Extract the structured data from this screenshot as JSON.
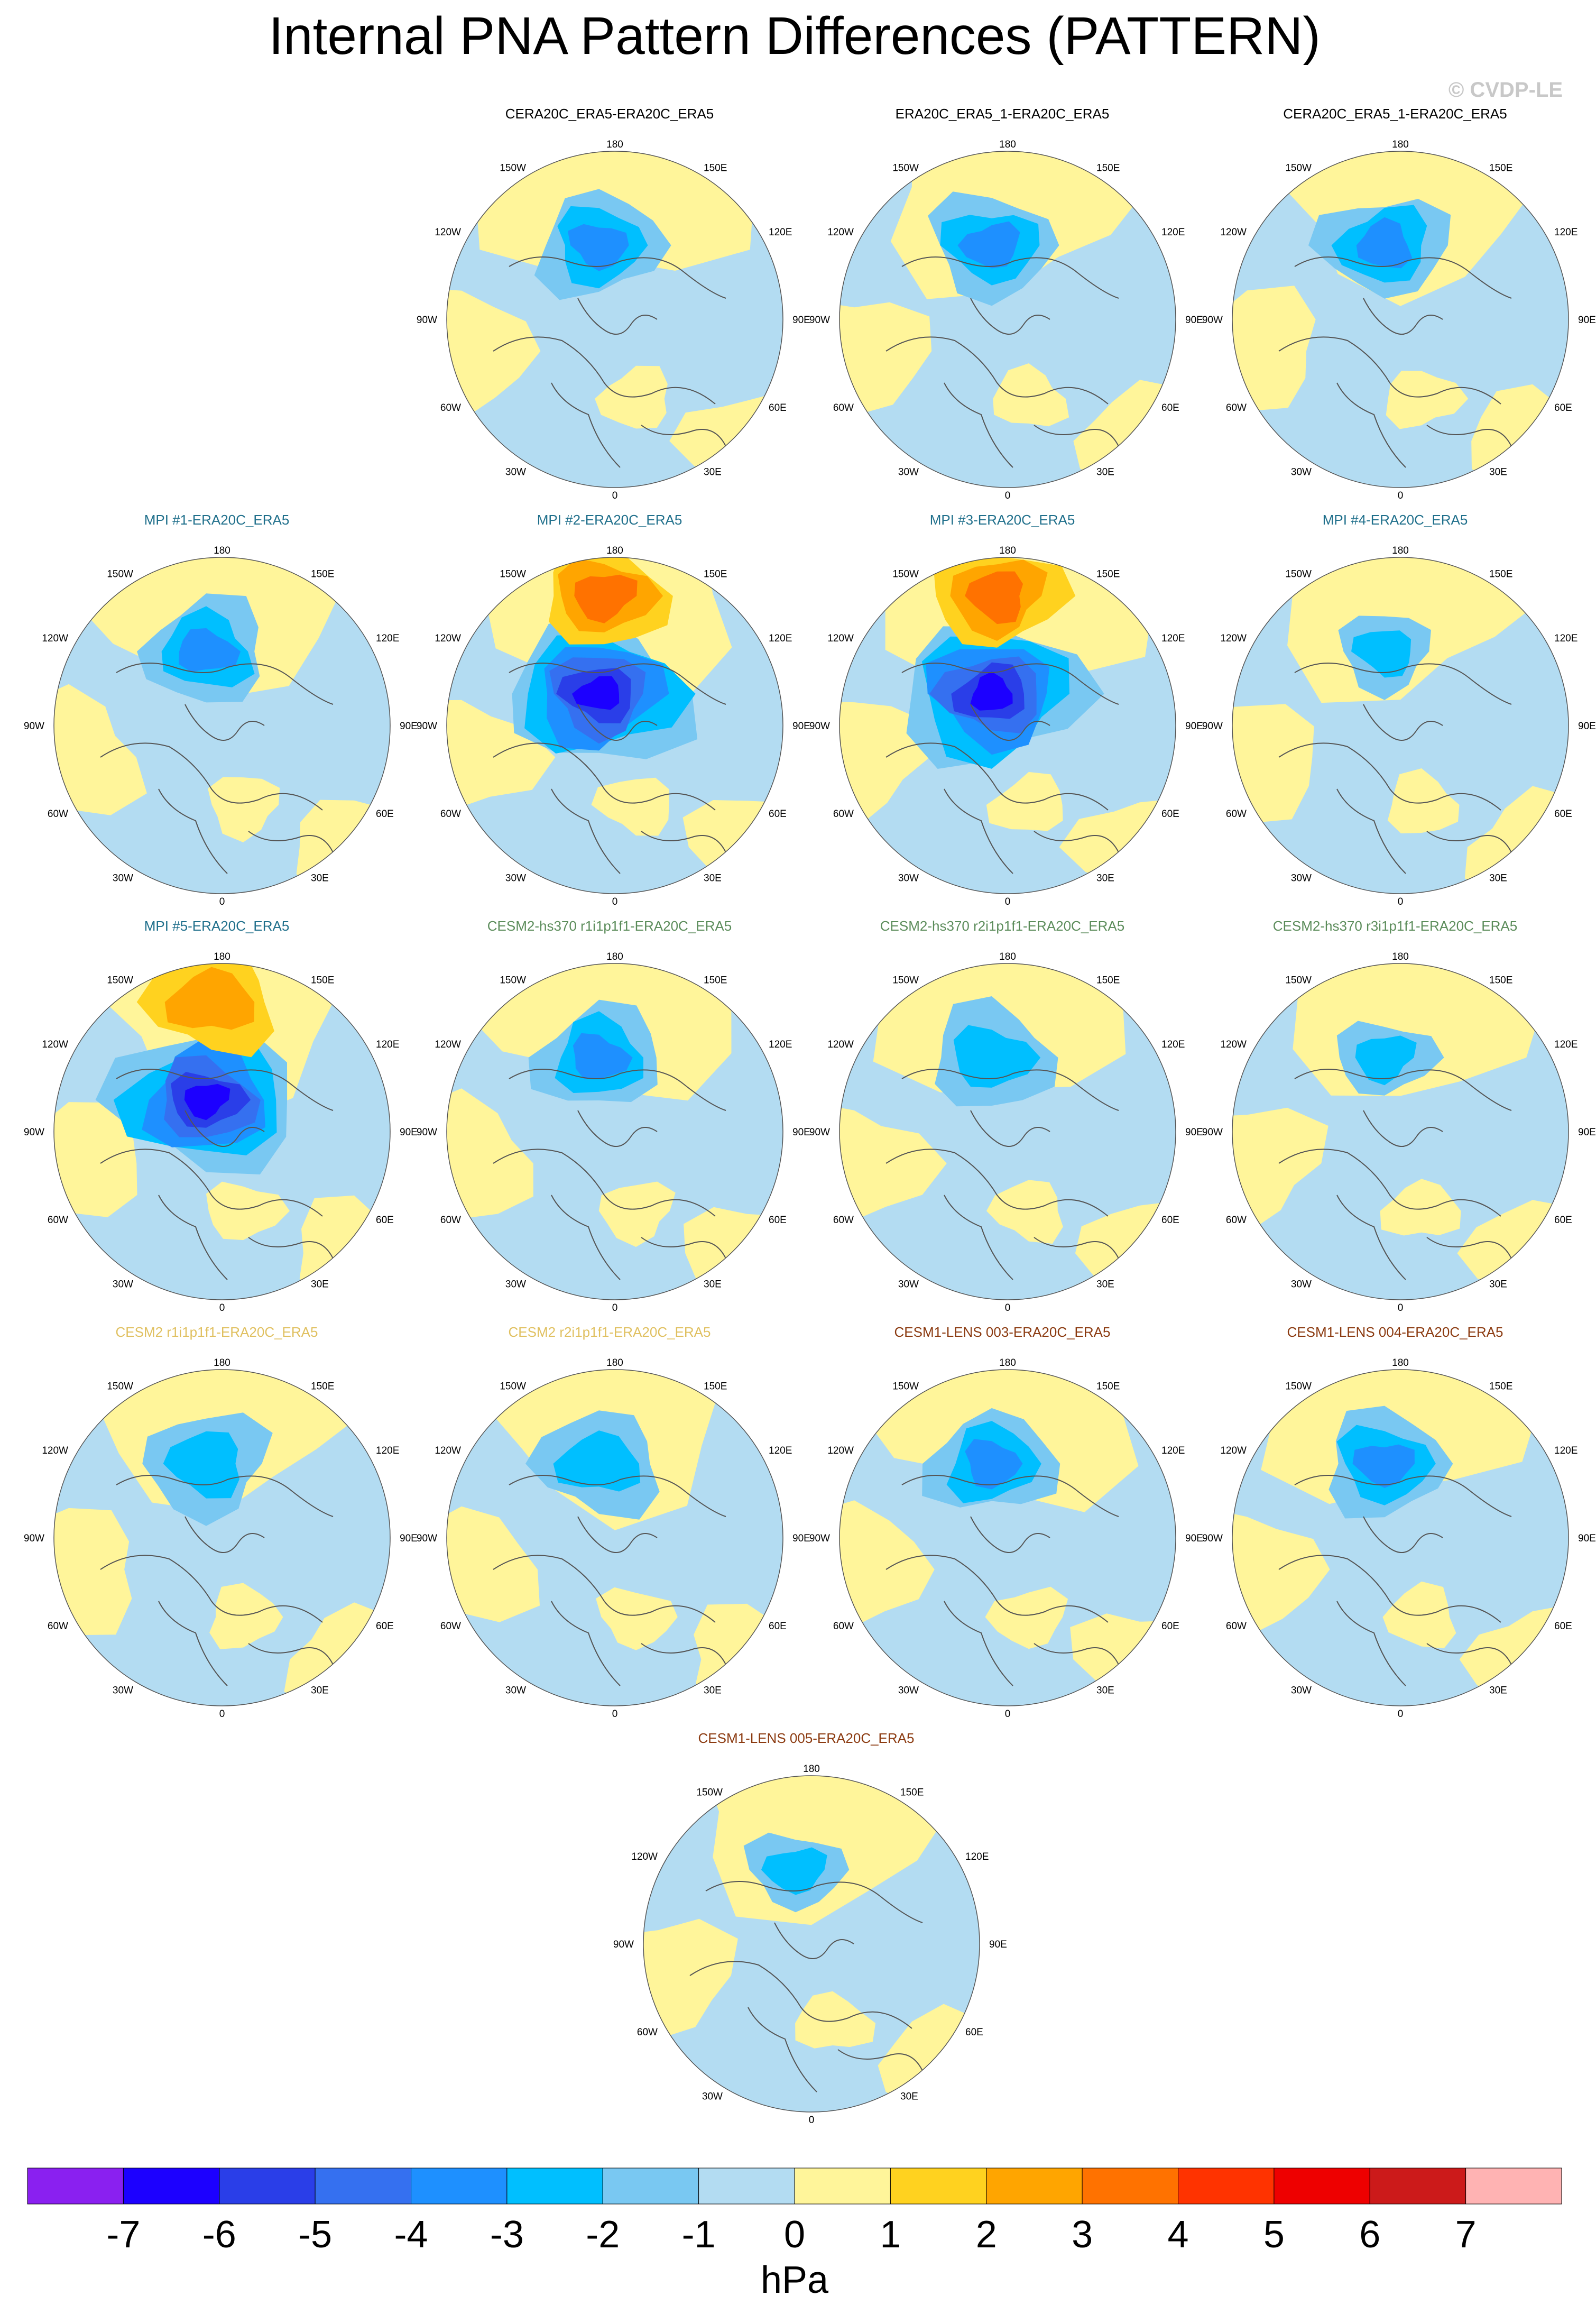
{
  "title": "Internal PNA Pattern Differences (PATTERN)",
  "watermark": "© CVDP-LE",
  "lon_labels": [
    "180",
    "150E",
    "120E",
    "90E",
    "60E",
    "30E",
    "0",
    "30W",
    "60W",
    "90W",
    "120W",
    "150W"
  ],
  "panels": [
    {
      "label": "CERA20C_ERA5-ERA20C_ERA5",
      "title_color": "#000000",
      "min": -3,
      "max": 0,
      "pattern": "weak"
    },
    {
      "label": "ERA20C_ERA5_1-ERA20C_ERA5",
      "title_color": "#000000",
      "min": -3,
      "max": 0,
      "pattern": "weak"
    },
    {
      "label": "CERA20C_ERA5_1-ERA20C_ERA5",
      "title_color": "#000000",
      "min": -3,
      "max": 0,
      "pattern": "weak"
    },
    {
      "label": "MPI #1-ERA20C_ERA5",
      "title_color": "#1f6f8b",
      "min": -3,
      "max": 0,
      "pattern": "weak"
    },
    {
      "label": "MPI #2-ERA20C_ERA5",
      "title_color": "#1f6f8b",
      "min": -6,
      "max": 3,
      "pattern": "strong"
    },
    {
      "label": "MPI #3-ERA20C_ERA5",
      "title_color": "#1f6f8b",
      "min": -6,
      "max": 3,
      "pattern": "strong"
    },
    {
      "label": "MPI #4-ERA20C_ERA5",
      "title_color": "#1f6f8b",
      "min": -2,
      "max": 0,
      "pattern": "faint"
    },
    {
      "label": "MPI #5-ERA20C_ERA5",
      "title_color": "#1f6f8b",
      "min": -6,
      "max": 2,
      "pattern": "strong"
    },
    {
      "label": "CESM2-hs370 r1i1p1f1-ERA20C_ERA5",
      "title_color": "#5b8c5a",
      "min": -3,
      "max": 0,
      "pattern": "weak"
    },
    {
      "label": "CESM2-hs370 r2i1p1f1-ERA20C_ERA5",
      "title_color": "#5b8c5a",
      "min": -2,
      "max": 0,
      "pattern": "weak"
    },
    {
      "label": "CESM2-hs370 r3i1p1f1-ERA20C_ERA5",
      "title_color": "#5b8c5a",
      "min": -2,
      "max": 0,
      "pattern": "faint"
    },
    {
      "label": "CESM2 r1i1p1f1-ERA20C_ERA5",
      "title_color": "#e0c060",
      "min": -2,
      "max": 0,
      "pattern": "weak"
    },
    {
      "label": "CESM2 r2i1p1f1-ERA20C_ERA5",
      "title_color": "#e0c060",
      "min": -2,
      "max": 0,
      "pattern": "weak"
    },
    {
      "label": "CESM1-LENS 003-ERA20C_ERA5",
      "title_color": "#8b3a10",
      "min": -3,
      "max": 0,
      "pattern": "weak"
    },
    {
      "label": "CESM1-LENS 004-ERA20C_ERA5",
      "title_color": "#8b3a10",
      "min": -3,
      "max": 0,
      "pattern": "weak"
    },
    {
      "label": "CESM1-LENS 005-ERA20C_ERA5",
      "title_color": "#8b3a10",
      "min": -2,
      "max": 0,
      "pattern": "faint"
    }
  ],
  "colorbar": {
    "unit": "hPa",
    "ticks": [
      "-7",
      "-6",
      "-5",
      "-4",
      "-3",
      "-2",
      "-1",
      "0",
      "1",
      "2",
      "3",
      "4",
      "5",
      "6",
      "7"
    ],
    "colors": [
      "#8a20f0",
      "#1c00ff",
      "#2a3ee8",
      "#3570f0",
      "#1e90ff",
      "#00bfff",
      "#79c8f2",
      "#b3dcf2",
      "#fff59a",
      "#ffd21f",
      "#ffa500",
      "#ff7200",
      "#ff3300",
      "#ee0000",
      "#cc1a1a",
      "#ffb3b3"
    ]
  }
}
